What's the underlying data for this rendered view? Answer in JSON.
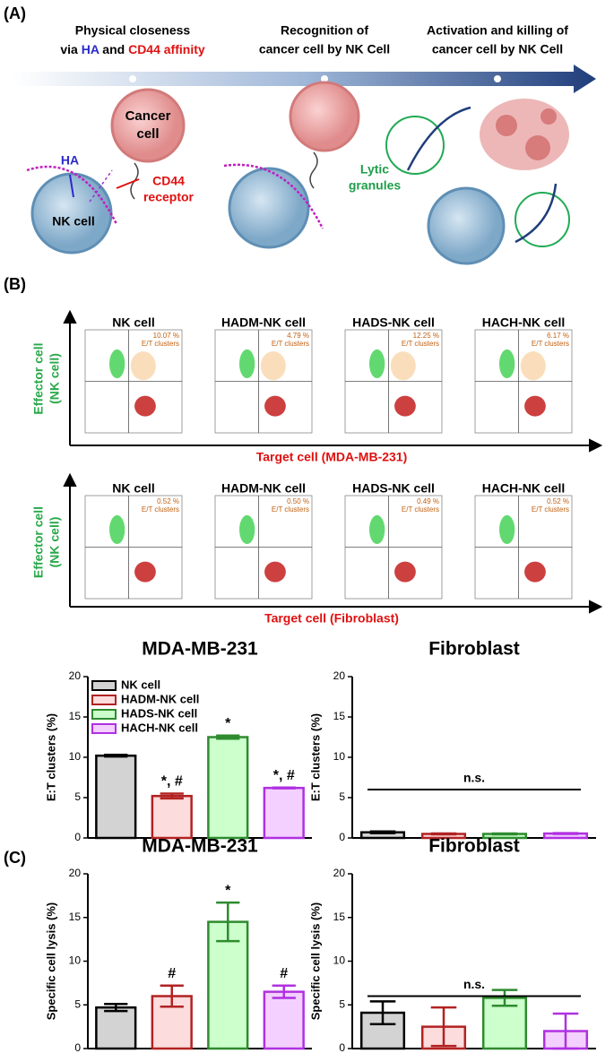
{
  "panel_labels": {
    "a": "(A)",
    "b": "(B)",
    "c": "(C)"
  },
  "panel_a": {
    "step1": {
      "line1": "Physical closeness",
      "line2_parts": [
        "via ",
        "HA",
        " and ",
        "CD44 affinity"
      ]
    },
    "step2": {
      "line1": "Recognition of",
      "line2": "cancer cell by NK Cell"
    },
    "step3": {
      "line1": "Activation and killing of",
      "line2": "cancer cell by NK Cell"
    },
    "cancer_cell": [
      "Cancer",
      "cell"
    ],
    "ha": "HA",
    "cd44": [
      "CD44",
      "receptor"
    ],
    "nk_cell": "NK cell",
    "lytic": [
      "Lytic",
      "granules"
    ]
  },
  "panel_b": {
    "y_label": [
      "Effector cell",
      "(NK cell)"
    ],
    "rows": [
      {
        "x_label": "Target cell (MDA-MB-231)",
        "plots": [
          {
            "title": "NK cell",
            "percent": "10.07 %",
            "gate": "E/T clusters"
          },
          {
            "title": "HADM-NK cell",
            "percent": "4.79 %",
            "gate": "E/T clusters"
          },
          {
            "title": "HADS-NK cell",
            "percent": "12.25 %",
            "gate": "E/T clusters"
          },
          {
            "title": "HACH-NK cell",
            "percent": "6.17 %",
            "gate": "E/T clusters"
          }
        ]
      },
      {
        "x_label": "Target cell (Fibroblast)",
        "plots": [
          {
            "title": "NK cell",
            "percent": "0.52 %",
            "gate": "E/T clusters"
          },
          {
            "title": "HADM-NK cell",
            "percent": "0.50 %",
            "gate": "E/T clusters"
          },
          {
            "title": "HADS-NK cell",
            "percent": "0.49 %",
            "gate": "E/T clusters"
          },
          {
            "title": "HACH-NK cell",
            "percent": "0.52 %",
            "gate": "E/T clusters"
          }
        ]
      }
    ]
  },
  "chart_data": [
    {
      "type": "bar",
      "title": "MDA-MB-231",
      "y_label": "E:T clusters (%)",
      "categories": [
        null,
        null,
        null,
        null
      ],
      "values": [
        10.2,
        5.2,
        12.5,
        6.2
      ],
      "errors": [
        0.1,
        0.3,
        0.2,
        0.05
      ],
      "colors": [
        "#000000",
        "#b22222",
        "#2e8b2e",
        "#b030e0"
      ],
      "fills": [
        "#d3d3d3",
        "#fcdcdc",
        "#ccffcc",
        "#f3d0ff"
      ],
      "annotations": [
        null,
        "*, #",
        "*",
        "*, #"
      ],
      "legend": [
        "NK cell",
        "HADM-NK cell",
        "HADS-NK cell",
        "HACH-NK cell"
      ],
      "ylim": [
        0,
        20
      ],
      "yticks": [
        0,
        5,
        10,
        15,
        20
      ]
    },
    {
      "type": "bar",
      "title": "Fibroblast",
      "y_label": "E:T clusters (%)",
      "categories": [
        null,
        null,
        null,
        null
      ],
      "values": [
        0.7,
        0.5,
        0.5,
        0.55
      ],
      "errors": [
        0.1,
        0.05,
        0.05,
        0.05
      ],
      "colors": [
        "#000000",
        "#b22222",
        "#2e8b2e",
        "#b030e0"
      ],
      "fills": [
        "#d3d3d3",
        "#fcdcdc",
        "#ccffcc",
        "#f3d0ff"
      ],
      "annotation": "n.s.",
      "ylim": [
        0,
        20
      ],
      "yticks": [
        0,
        5,
        10,
        15,
        20
      ]
    },
    {
      "type": "bar",
      "title": "MDA-MB-231",
      "y_label": "Specific cell lysis (%)",
      "categories": [
        null,
        null,
        null,
        null
      ],
      "values": [
        4.7,
        6.0,
        14.5,
        6.5
      ],
      "errors": [
        0.4,
        1.2,
        2.2,
        0.7
      ],
      "colors": [
        "#000000",
        "#b22222",
        "#2e8b2e",
        "#b030e0"
      ],
      "fills": [
        "#d3d3d3",
        "#fcdcdc",
        "#ccffcc",
        "#f3d0ff"
      ],
      "annotations": [
        null,
        "#",
        "*",
        "#"
      ],
      "ylim": [
        0,
        20
      ],
      "yticks": [
        0,
        5,
        10,
        15,
        20
      ]
    },
    {
      "type": "bar",
      "title": "Fibroblast",
      "y_label": "Specific cell lysis (%)",
      "categories": [
        null,
        null,
        null,
        null
      ],
      "values": [
        4.1,
        2.5,
        5.8,
        2.0
      ],
      "errors": [
        1.3,
        2.2,
        0.9,
        2.0
      ],
      "colors": [
        "#000000",
        "#b22222",
        "#2e8b2e",
        "#b030e0"
      ],
      "fills": [
        "#d3d3d3",
        "#fcdcdc",
        "#ccffcc",
        "#f3d0ff"
      ],
      "annotation": "n.s.",
      "ylim": [
        0,
        20
      ],
      "yticks": [
        0,
        5,
        10,
        15,
        20
      ]
    }
  ]
}
